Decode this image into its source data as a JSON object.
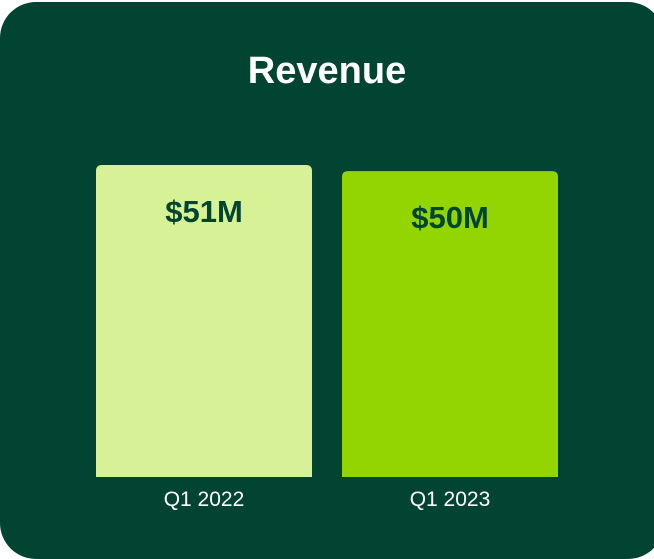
{
  "chart_data": {
    "type": "bar",
    "title": "Revenue",
    "categories": [
      "Q1 2022",
      "Q1 2023"
    ],
    "values": [
      51,
      50
    ],
    "value_labels": [
      "$51M",
      "$50M"
    ],
    "unit": "$M",
    "ylim": [
      0,
      51
    ],
    "grid": false,
    "bar_colors": [
      "#d6f196",
      "#92d500"
    ],
    "label_color": "#014431",
    "background_color": "#014431"
  }
}
